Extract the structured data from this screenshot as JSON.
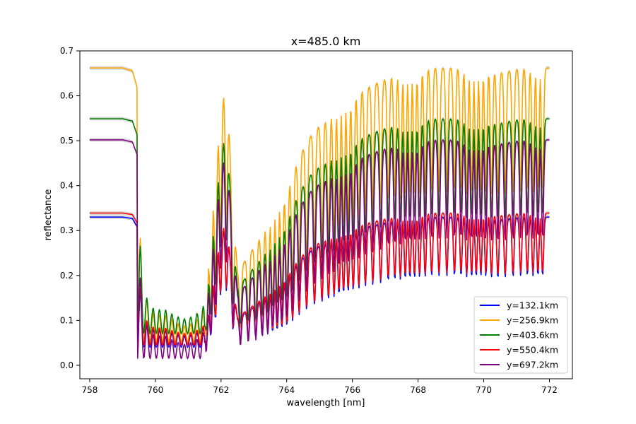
{
  "chart_data": {
    "type": "line",
    "title": "x=485.0 km",
    "xlabel": "wavelength [nm]",
    "ylabel": "reflectance",
    "xlim": [
      757.7,
      772.7
    ],
    "ylim": [
      -0.03,
      0.7
    ],
    "xticks": [
      758,
      760,
      762,
      764,
      766,
      768,
      770,
      772
    ],
    "xtick_labels": [
      "758",
      "760",
      "762",
      "764",
      "766",
      "768",
      "770",
      "772"
    ],
    "yticks": [
      0.0,
      0.1,
      0.2,
      0.3,
      0.4,
      0.5,
      0.6,
      0.7
    ],
    "ytick_labels": [
      "0.0",
      "0.1",
      "0.2",
      "0.3",
      "0.4",
      "0.5",
      "0.6",
      "0.7"
    ],
    "grid": false,
    "legend_position": "lower right",
    "band_color": "#b0b0b0",
    "shape_x": [
      758.0,
      759.0,
      759.3,
      759.45,
      759.6,
      759.8,
      760.0,
      760.3,
      760.6,
      760.9,
      761.2,
      761.5,
      761.7,
      761.9,
      762.0,
      762.1,
      762.2,
      762.35,
      762.5,
      762.8,
      763.2,
      763.6,
      764.0,
      764.4,
      764.8,
      765.2,
      765.6,
      766.0,
      766.4,
      766.8,
      767.2,
      767.6,
      768.0,
      768.4,
      768.8,
      769.2,
      769.6,
      770.0,
      770.4,
      770.8,
      771.2,
      771.6,
      772.0
    ],
    "series": [
      {
        "name": "y=132.1km",
        "color": "#0000ff",
        "scale": 0.33,
        "floor": 0.04
      },
      {
        "name": "y=256.9km",
        "color": "#ffa500",
        "scale": 0.662,
        "floor": 0.05
      },
      {
        "name": "y=403.6km",
        "color": "#008000",
        "scale": 0.549,
        "floor": 0.07
      },
      {
        "name": "y=550.4km",
        "color": "#ff0000",
        "scale": 0.339,
        "floor": 0.045
      },
      {
        "name": "y=697.2km",
        "color": "#800080",
        "scale": 0.502,
        "floor": 0.015
      }
    ],
    "shape_envelope": [
      1.0,
      1.0,
      0.99,
      0.93,
      0.3,
      0.15,
      0.12,
      0.12,
      0.08,
      0.06,
      0.08,
      0.15,
      0.45,
      0.75,
      0.88,
      0.92,
      0.88,
      0.55,
      0.3,
      0.35,
      0.42,
      0.5,
      0.58,
      0.7,
      0.78,
      0.82,
      0.87,
      0.9,
      0.93,
      0.95,
      0.97,
      0.98,
      0.99,
      1.0,
      1.0,
      1.0,
      0.99,
      1.0,
      0.98,
      0.99,
      1.0,
      1.0,
      1.0
    ]
  }
}
